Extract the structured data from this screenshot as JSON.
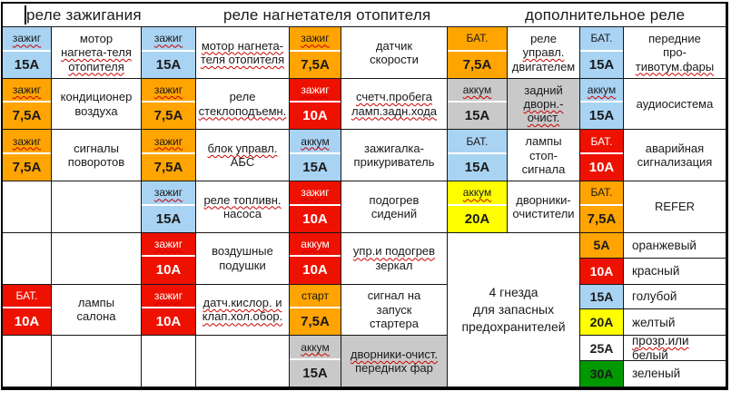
{
  "header": {
    "titles": [
      "реле зажигания",
      "реле нагнетателя отопителя",
      "дополнительное реле"
    ]
  },
  "colors": {
    "blue": "#a9d3f3",
    "orange": "#ffa400",
    "red": "#ee1100",
    "gray": "#c9c9c9",
    "yellow": "#ffff00",
    "green": "#009900",
    "white": "#ffffff"
  },
  "merged_note": {
    "lines": [
      "4 гнезда",
      "для запасных",
      "предохранителей"
    ]
  },
  "rows": [
    {
      "slots": [
        {
          "bg": "blue",
          "type": "зажиг",
          "tsq": true,
          "amp": "15А",
          "desc": [
            {
              "t": "мотор"
            },
            {
              "t": "нагнета-теля",
              "sq": true
            },
            {
              "t": "отопителя",
              "sq": true
            }
          ]
        },
        {
          "bg": "blue",
          "type": "зажиг",
          "tsq": true,
          "amp": "15А",
          "desc": [
            {
              "t": "мотор нагнета-",
              "sq": true
            },
            {
              "t": "теля отопителя",
              "sq": true
            }
          ]
        },
        {
          "bg": "orange",
          "type": "зажиг",
          "tsq": true,
          "amp": "7,5А",
          "desc": [
            {
              "t": "датчик"
            },
            {
              "t": "скорости"
            }
          ]
        },
        {
          "bg": "orange",
          "type": "БАТ.",
          "amp": "7,5А",
          "desc": [
            {
              "t": "реле"
            },
            {
              "t": "управл.",
              "sq": true
            },
            {
              "t": "двигателем"
            }
          ]
        },
        {
          "bg": "blue",
          "type": "БАТ.",
          "amp": "15А",
          "desc": [
            {
              "t": "передние"
            },
            {
              "t": "про-"
            },
            {
              "t": "тивотум.фары",
              "sq": true
            }
          ]
        }
      ]
    },
    {
      "slots": [
        {
          "bg": "orange",
          "type": "зажиг",
          "tsq": true,
          "amp": "7,5А",
          "desc": [
            {
              "t": "кондиционер"
            },
            {
              "t": "воздуха"
            }
          ]
        },
        {
          "bg": "orange",
          "type": "зажиг",
          "tsq": true,
          "amp": "7,5А",
          "desc": [
            {
              "t": "реле"
            },
            {
              "t": "стеклоподъемн.",
              "sq": true
            }
          ]
        },
        {
          "bg": "red",
          "type": "зажиг",
          "tsq": true,
          "amp": "10А",
          "desc": [
            {
              "t": "счетч.пробега",
              "sq": true
            },
            {
              "t": "ламп.задн.хода",
              "sq": true
            }
          ]
        },
        {
          "bg": "gray",
          "type": "аккум",
          "tsq": true,
          "amp": "15А",
          "dbg": "gray",
          "desc": [
            {
              "t": "задний"
            },
            {
              "t": "дворн.-",
              "sq": true
            },
            {
              "t": "очист.",
              "sq": true
            }
          ]
        },
        {
          "bg": "blue",
          "type": "аккум",
          "tsq": true,
          "amp": "15А",
          "desc": [
            {
              "t": "аудиосистема"
            }
          ]
        }
      ]
    },
    {
      "slots": [
        {
          "bg": "orange",
          "type": "зажиг",
          "tsq": true,
          "amp": "7,5А",
          "desc": [
            {
              "t": "сигналы"
            },
            {
              "t": "поворотов"
            }
          ]
        },
        {
          "bg": "orange",
          "type": "зажиг",
          "tsq": true,
          "amp": "7,5А",
          "desc": [
            {
              "t": "блок управл.",
              "sq": true
            },
            {
              "t": "АБС"
            }
          ]
        },
        {
          "bg": "blue",
          "type": "аккум",
          "tsq": true,
          "amp": "15А",
          "desc": [
            {
              "t": "зажигалка-"
            },
            {
              "t": "прикуриватель"
            }
          ]
        },
        {
          "bg": "blue",
          "type": "БАТ.",
          "amp": "15А",
          "desc": [
            {
              "t": "лампы"
            },
            {
              "t": "стоп-"
            },
            {
              "t": "сигнала"
            }
          ]
        },
        {
          "bg": "red",
          "type": "БАТ.",
          "amp": "10А",
          "desc": [
            {
              "t": "аварийная"
            },
            {
              "t": "сигнализация"
            }
          ]
        }
      ]
    },
    {
      "slots": [
        {
          "empty": true
        },
        {
          "bg": "blue",
          "type": "зажиг",
          "tsq": true,
          "amp": "15А",
          "desc": [
            {
              "t": "реле топливн.",
              "sq": true
            },
            {
              "t": "насоса"
            }
          ]
        },
        {
          "bg": "red",
          "type": "зажиг",
          "tsq": true,
          "amp": "10А",
          "desc": [
            {
              "t": "подогрев"
            },
            {
              "t": "сидений"
            }
          ]
        },
        {
          "bg": "yellow",
          "type": "аккум",
          "tsq": true,
          "amp": "20А",
          "desc": [
            {
              "t": "дворники-"
            },
            {
              "t": "очистители"
            }
          ]
        },
        {
          "bg": "orange",
          "type": "БАТ.",
          "amp": "7,5А",
          "desc": [
            {
              "t": "REFER"
            }
          ]
        }
      ]
    },
    {
      "slots": [
        {
          "empty": true
        },
        {
          "bg": "red",
          "type": "зажиг",
          "tsq": true,
          "amp": "10А",
          "desc": [
            {
              "t": "воздушные"
            },
            {
              "t": "подушки"
            }
          ]
        },
        {
          "bg": "red",
          "type": "аккум",
          "tsq": true,
          "amp": "10А",
          "desc": [
            {
              "t": "упр.и подогрев",
              "sq": true
            },
            {
              "t": "зеркал"
            }
          ]
        },
        {
          "merged": true
        },
        {
          "spare": [
            {
              "amp": "5А",
              "bg": "orange",
              "label": [
                {
                  "t": "оранжевый"
                }
              ]
            },
            {
              "amp": "10А",
              "bg": "red",
              "label": [
                {
                  "t": "красный"
                }
              ]
            }
          ]
        }
      ]
    },
    {
      "slots": [
        {
          "bg": "red",
          "type": "БАТ.",
          "amp": "10А",
          "desc": [
            {
              "t": "лампы"
            },
            {
              "t": "салона"
            }
          ]
        },
        {
          "bg": "red",
          "type": "зажиг",
          "tsq": true,
          "amp": "10А",
          "desc": [
            {
              "t": "датч.кислор. и",
              "sq": true
            },
            {
              "t": "клап.хол.обор.",
              "sq": true
            }
          ]
        },
        {
          "bg": "orange",
          "type": "старт",
          "amp": "7,5А",
          "desc": [
            {
              "t": "сигнал на"
            },
            {
              "t": "запуск"
            },
            {
              "t": "стартера"
            }
          ]
        },
        {
          "skip": true
        },
        {
          "spare": [
            {
              "amp": "15А",
              "bg": "blue",
              "label": [
                {
                  "t": "голубой"
                }
              ]
            },
            {
              "amp": "20А",
              "bg": "yellow",
              "label": [
                {
                  "t": "желтый"
                }
              ]
            }
          ]
        }
      ]
    },
    {
      "slots": [
        {
          "empty": true
        },
        {
          "empty": true
        },
        {
          "bg": "gray",
          "type": "аккум",
          "tsq": true,
          "amp": "15А",
          "dbg": "gray",
          "desc": [
            {
              "t": "дворники-очист.",
              "sq": true
            },
            {
              "t": "передних фар"
            }
          ]
        },
        {
          "skip": true
        },
        {
          "spare": [
            {
              "amp": "25А",
              "bg": "white",
              "label": [
                {
                  "t": "прозр.или",
                  "sq": true
                },
                {
                  "t": "белый"
                }
              ]
            },
            {
              "amp": "30А",
              "bg": "green",
              "label": [
                {
                  "t": "зеленый"
                }
              ]
            }
          ]
        }
      ]
    }
  ]
}
